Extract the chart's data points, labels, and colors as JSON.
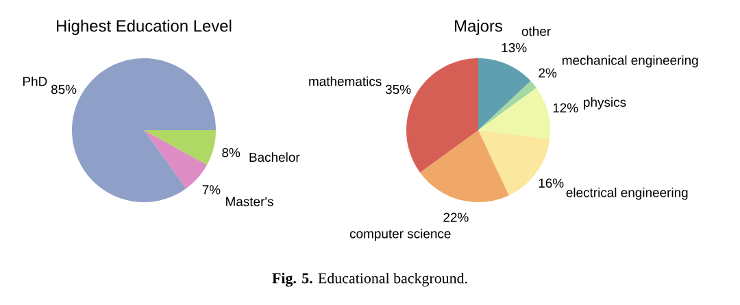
{
  "chart_data": [
    {
      "type": "pie",
      "title": "Highest Education Level",
      "categories": [
        "Bachelor",
        "Master's",
        "PhD"
      ],
      "values": [
        8,
        7,
        85
      ],
      "value_labels": [
        "8%",
        "7%",
        "85%"
      ],
      "colors": [
        "#b0d865",
        "#de8cc4",
        "#8fa0c8"
      ],
      "annotations": [
        "**Fig. 5.** Educational background."
      ]
    },
    {
      "type": "pie",
      "title": "Majors",
      "categories": [
        "other",
        "mechanical engineering",
        "physics",
        "electrical engineering",
        "computer science",
        "mathematics"
      ],
      "values": [
        13,
        2,
        12,
        16,
        22,
        35
      ],
      "value_labels": [
        "13%",
        "2%",
        "12%",
        "16%",
        "22%",
        "35%"
      ],
      "colors": [
        "#5f9fb0",
        "#a4d8a4",
        "#eef8a8",
        "#fbe79e",
        "#f0a868",
        "#d65f55"
      ]
    }
  ]
}
